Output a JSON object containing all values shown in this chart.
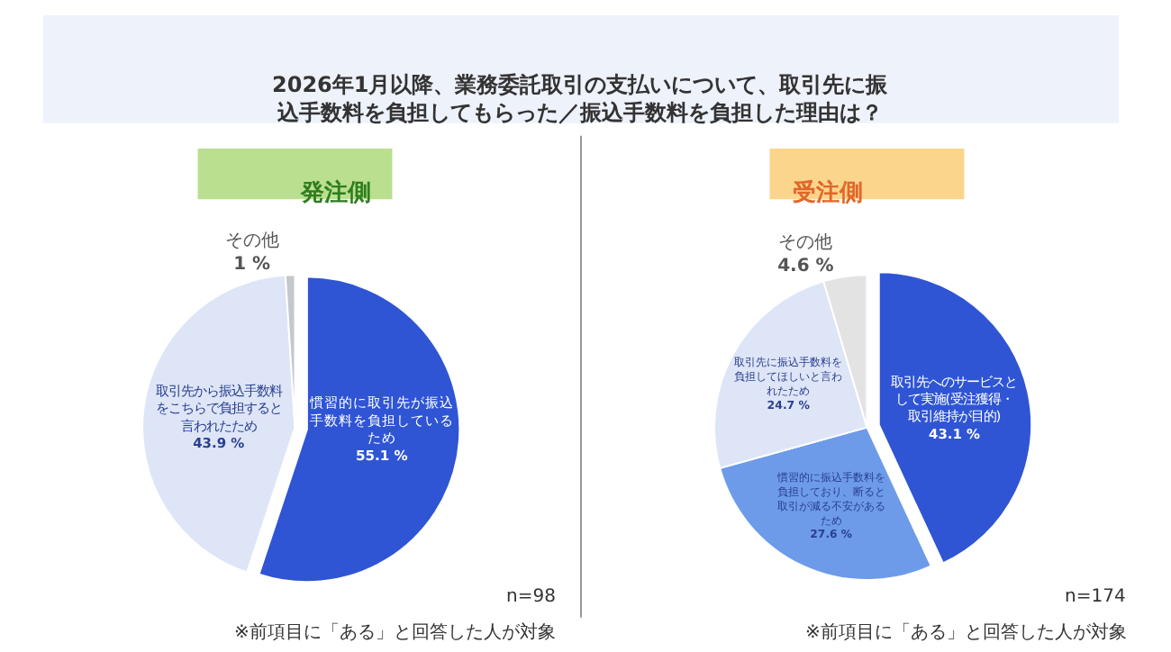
{
  "chart_data": [
    {
      "type": "pie",
      "title": "2026年1月以降、業務委託取引の支払いについて、取引先に振込手数料を負担してもらった／振込手数料を負担した理由は？",
      "subtitle": "発注側",
      "categories": [
        "慣習的に取引先が振込手数料を負担しているため",
        "取引先から振込手数料をこちらで負担すると言われたため",
        "その他"
      ],
      "values": [
        55.1,
        43.9,
        1
      ],
      "value_labels": [
        "55.1 %",
        "43.9 %",
        "1 %"
      ],
      "colors": [
        "#2f55d4",
        "#dde5f7",
        "#c4c7cc"
      ],
      "legend": false,
      "annotations": [
        "n=98",
        "※前項目に「ある」と回答した人が対象"
      ]
    },
    {
      "type": "pie",
      "subtitle": "受注側",
      "categories": [
        "取引先へのサービスとして実施(受注獲得・取引維持が目的)",
        "慣習的に振込手数料を負担しており、断ると取引が減る不安があるため",
        "取引先に振込手数料を負担してほしいと言われたため",
        "その他"
      ],
      "values": [
        43.1,
        27.6,
        24.7,
        4.6
      ],
      "value_labels": [
        "43.1 %",
        "27.6 %",
        "24.7 %",
        "4.6 %"
      ],
      "colors": [
        "#2f55d4",
        "#6d9bea",
        "#dde5f7",
        "#e3e3e3"
      ],
      "legend": false,
      "annotations": [
        "n=174",
        "※前項目に「ある」と回答した人が対象"
      ]
    }
  ]
}
